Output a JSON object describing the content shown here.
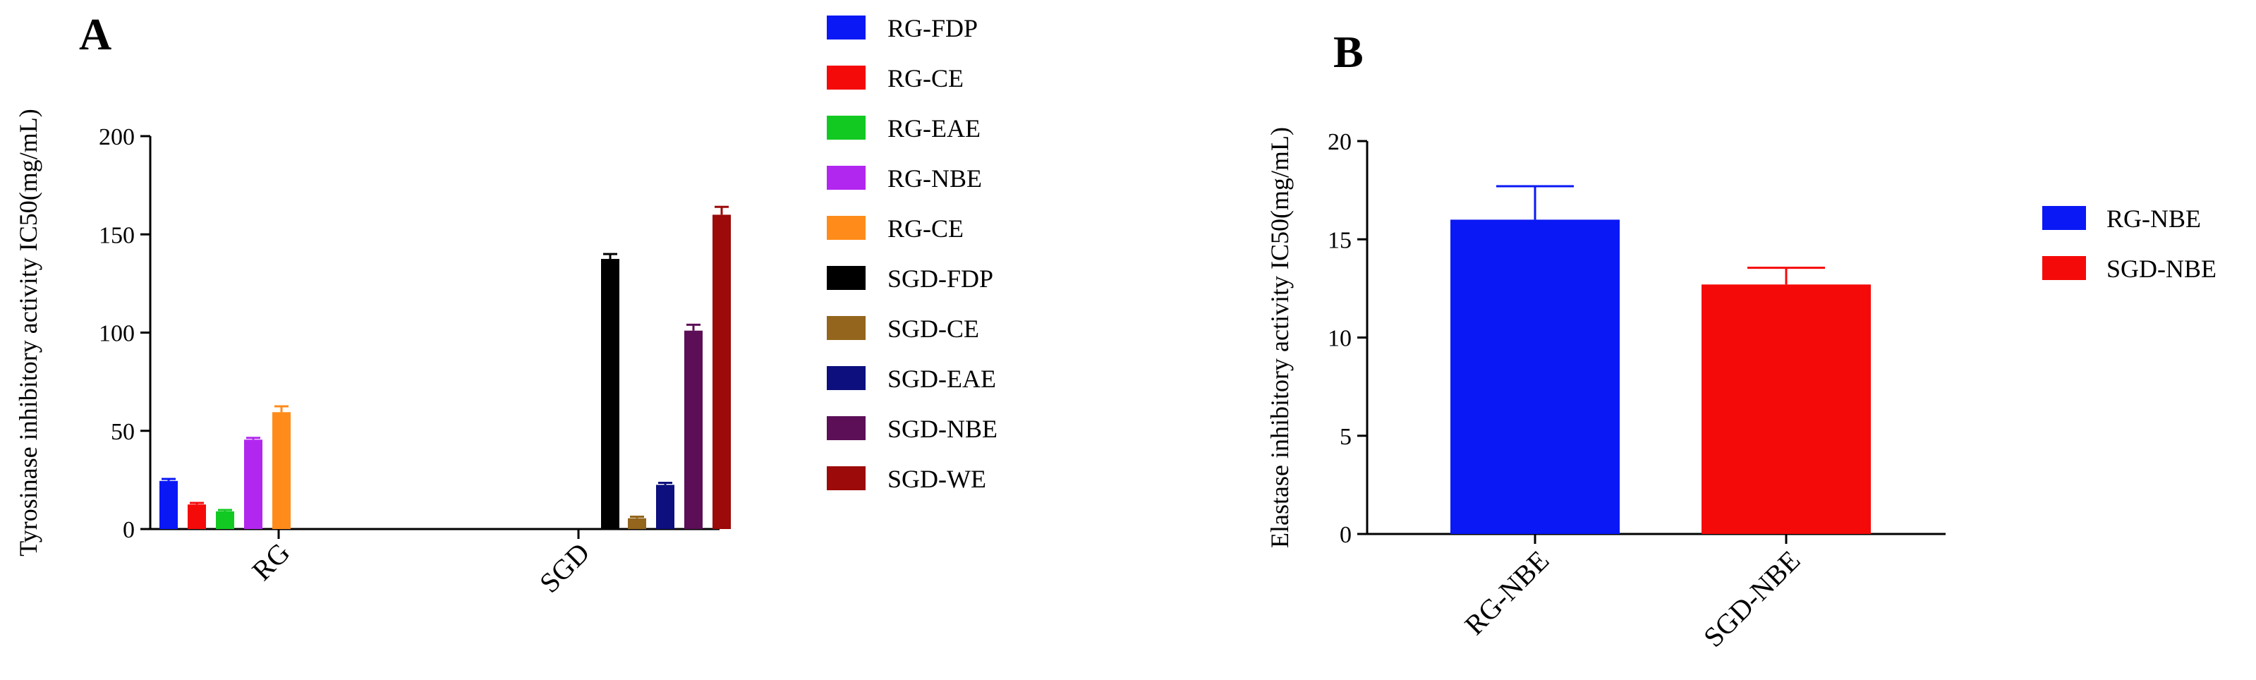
{
  "chart_data": [
    {
      "panel": "A",
      "type": "bar",
      "title": "",
      "xlabel": "",
      "ylabel": "Tyrosinase inhibitory activity IC50(mg/mL)",
      "ylim": [
        0,
        200
      ],
      "yticks": [
        0,
        50,
        100,
        150,
        200
      ],
      "categories": [
        "RG",
        "SGD"
      ],
      "series": [
        {
          "name": "RG-FDP",
          "color": "#0a18f5",
          "values": [
            24.5,
            null
          ],
          "errors": [
            1.0,
            null
          ]
        },
        {
          "name": "RG-CE",
          "color": "#f50a0a",
          "values": [
            12.5,
            null
          ],
          "errors": [
            0.8,
            null
          ]
        },
        {
          "name": "RG-EAE",
          "color": "#12c921",
          "values": [
            9.0,
            null
          ],
          "errors": [
            0.7,
            null
          ]
        },
        {
          "name": "RG-NBE",
          "color": "#b227f0",
          "values": [
            45.5,
            null
          ],
          "errors": [
            0.9,
            null
          ]
        },
        {
          "name": "RG-CE",
          "color": "#ff8c1a",
          "values": [
            59.5,
            null
          ],
          "errors": [
            3.0,
            null
          ]
        },
        {
          "name": "SGD-FDP",
          "color": "#000000",
          "values": [
            null,
            137.5
          ],
          "errors": [
            null,
            2.5
          ]
        },
        {
          "name": "SGD-CE",
          "color": "#94651d",
          "values": [
            null,
            5.5
          ],
          "errors": [
            null,
            0.8
          ]
        },
        {
          "name": "SGD-EAE",
          "color": "#0c0f7d",
          "values": [
            null,
            22.5
          ],
          "errors": [
            null,
            1.0
          ]
        },
        {
          "name": "SGD-NBE",
          "color": "#5c0f57",
          "values": [
            null,
            101.0
          ],
          "errors": [
            null,
            3.0
          ]
        },
        {
          "name": "SGD-WE",
          "color": "#9c0a0a",
          "values": [
            null,
            160.0
          ],
          "errors": [
            null,
            4.0
          ]
        }
      ],
      "legend": "right"
    },
    {
      "panel": "B",
      "type": "bar",
      "title": "",
      "xlabel": "",
      "ylabel": "Elastase inhibitory activity IC50(mg/mL)",
      "ylim": [
        0,
        20
      ],
      "yticks": [
        0,
        5,
        10,
        15,
        20
      ],
      "categories": [
        "RG-NBE",
        "SGD-NBE"
      ],
      "series": [
        {
          "name": "RG-NBE",
          "color": "#0a18f5",
          "values": [
            16.0,
            null
          ],
          "errors": [
            1.7,
            null
          ]
        },
        {
          "name": "SGD-NBE",
          "color": "#f50a0a",
          "values": [
            null,
            12.7
          ],
          "errors": [
            null,
            0.85
          ]
        }
      ],
      "legend": "right"
    }
  ]
}
